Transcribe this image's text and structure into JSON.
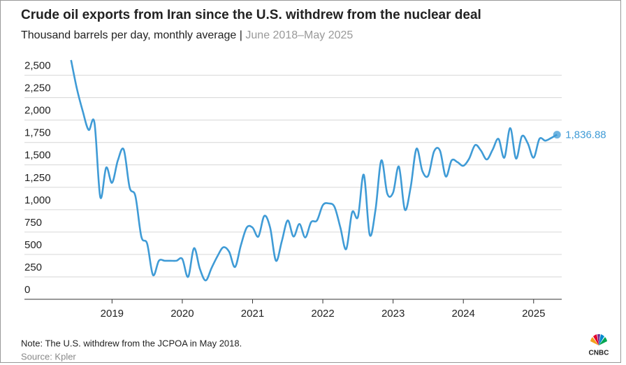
{
  "chart_data": {
    "type": "line",
    "title": "Crude oil exports from Iran since the U.S. withdrew from the nuclear deal",
    "subtitle": "Thousand barrels per day, monthly average",
    "separator": "|",
    "date_range": "June 2018–May 2025",
    "note": "Note: The U.S. withdrew from the JCPOA in May 2018.",
    "source": "Source: Kpler",
    "logo": "CNBC",
    "x": [
      2018.417,
      2018.5,
      2018.583,
      2018.667,
      2018.75,
      2018.833,
      2018.917,
      2019.0,
      2019.083,
      2019.167,
      2019.25,
      2019.333,
      2019.417,
      2019.5,
      2019.583,
      2019.667,
      2019.75,
      2019.833,
      2019.917,
      2020.0,
      2020.083,
      2020.167,
      2020.25,
      2020.333,
      2020.417,
      2020.5,
      2020.583,
      2020.667,
      2020.75,
      2020.833,
      2020.917,
      2021.0,
      2021.083,
      2021.167,
      2021.25,
      2021.333,
      2021.417,
      2021.5,
      2021.583,
      2021.667,
      2021.75,
      2021.833,
      2021.917,
      2022.0,
      2022.083,
      2022.167,
      2022.25,
      2022.333,
      2022.417,
      2022.5,
      2022.583,
      2022.667,
      2022.75,
      2022.833,
      2022.917,
      2023.0,
      2023.083,
      2023.167,
      2023.25,
      2023.333,
      2023.417,
      2023.5,
      2023.583,
      2023.667,
      2023.75,
      2023.833,
      2023.917,
      2024.0,
      2024.083,
      2024.167,
      2024.25,
      2024.333,
      2024.417,
      2024.5,
      2024.583,
      2024.667,
      2024.75,
      2024.833,
      2024.917,
      2025.0,
      2025.083,
      2025.167,
      2025.25,
      2025.333
    ],
    "series": [
      {
        "name": "Crude oil exports",
        "color": "#3f9bd6",
        "values": [
          2670,
          2350,
          2100,
          1890,
          1970,
          1140,
          1470,
          1300,
          1550,
          1670,
          1250,
          1150,
          700,
          620,
          270,
          430,
          430,
          430,
          430,
          450,
          250,
          570,
          340,
          210,
          350,
          480,
          580,
          530,
          360,
          600,
          800,
          800,
          700,
          930,
          800,
          430,
          650,
          880,
          700,
          840,
          690,
          860,
          880,
          1050,
          1070,
          1030,
          800,
          560,
          970,
          920,
          1390,
          720,
          1000,
          1550,
          1180,
          1190,
          1480,
          1000,
          1250,
          1680,
          1430,
          1380,
          1650,
          1660,
          1370,
          1550,
          1530,
          1490,
          1570,
          1720,
          1660,
          1560,
          1670,
          1790,
          1580,
          1910,
          1570,
          1820,
          1740,
          1580,
          1790,
          1770,
          1800,
          1836.88
        ],
        "value_labels": [
          null,
          null,
          null,
          null,
          null,
          null,
          null,
          null,
          null,
          null,
          null,
          null,
          null,
          null,
          null,
          null,
          null,
          null,
          null,
          null,
          null,
          null,
          null,
          null,
          null,
          null,
          null,
          null,
          null,
          null,
          null,
          null,
          null,
          null,
          null,
          null,
          null,
          null,
          null,
          null,
          null,
          null,
          null,
          null,
          null,
          null,
          null,
          null,
          null,
          null,
          null,
          null,
          null,
          null,
          null,
          null,
          null,
          null,
          null,
          null,
          null,
          null,
          null,
          null,
          null,
          null,
          null,
          null,
          null,
          null,
          null,
          null,
          null,
          null,
          null,
          null,
          null,
          null,
          null,
          null,
          null,
          null,
          null,
          "1,836.88"
        ]
      }
    ],
    "xlim": [
      2018.4,
      2025.4
    ],
    "xticks": [
      2019,
      2020,
      2021,
      2022,
      2023,
      2024,
      2025
    ],
    "ylim": [
      0,
      2700
    ],
    "yticks": [
      0,
      250,
      500,
      750,
      {
        "value": 1000,
        "label": "1,000"
      },
      {
        "value": 1250,
        "label": "1,250"
      },
      {
        "value": 1500,
        "label": "1,500"
      },
      {
        "value": 1750,
        "label": "1,750"
      },
      {
        "value": 2000,
        "label": "2,000"
      },
      {
        "value": 2250,
        "label": "2,250"
      },
      {
        "value": 2500,
        "label": "2,500"
      }
    ],
    "grid": true
  }
}
